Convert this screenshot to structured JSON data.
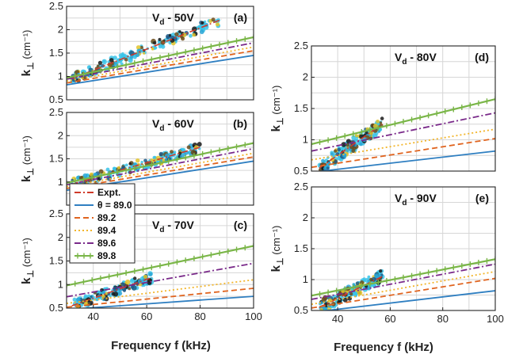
{
  "figure": {
    "ylabel_main": "k",
    "ylabel_sub": "⊥",
    "xlabel": "Frequency f (kHz)"
  },
  "legend": [
    {
      "label": "Expt.",
      "color": "#d03a2a",
      "dash": "dashdot"
    },
    {
      "label": "θ = 89.0",
      "color": "#2f7fc1",
      "dash": "solid"
    },
    {
      "label": "89.2",
      "color": "#e0641f",
      "dash": "dash"
    },
    {
      "label": "89.4",
      "color": "#f2b52a",
      "dash": "dot"
    },
    {
      "label": "89.6",
      "color": "#7a2a8a",
      "dash": "dashdot"
    },
    {
      "label": "89.8",
      "color": "#7ab648",
      "dash": "marker"
    }
  ],
  "chart_data": [
    {
      "type": "line",
      "panel": "(a)",
      "title_main": "V",
      "title_sub": "d",
      "title_rest": " - 50V",
      "ylabel_unit": " (cm⁻¹)",
      "x": [
        30,
        100
      ],
      "xlim": [
        30,
        100
      ],
      "ylim": [
        0.5,
        2.5
      ],
      "xticks": [],
      "yticks": [
        0.5,
        1,
        1.5,
        2,
        2.5
      ],
      "grid": true,
      "series": [
        {
          "name": "θ = 89.0",
          "color": "#2f7fc1",
          "dash": "solid",
          "values": [
            0.82,
            1.45
          ]
        },
        {
          "name": "89.2",
          "color": "#e0641f",
          "dash": "dash",
          "values": [
            0.86,
            1.55
          ]
        },
        {
          "name": "89.4",
          "color": "#f2b52a",
          "dash": "dot",
          "values": [
            0.9,
            1.63
          ]
        },
        {
          "name": "89.6",
          "color": "#7a2a8a",
          "dash": "dashdot",
          "values": [
            0.94,
            1.72
          ]
        },
        {
          "name": "89.8",
          "color": "#7ab648",
          "dash": "marker",
          "values": [
            0.97,
            1.84
          ]
        }
      ],
      "expt": {
        "x_range": [
          32,
          88
        ],
        "y_start": 0.95,
        "y_end": 2.22
      }
    },
    {
      "type": "line",
      "panel": "(b)",
      "title_main": "V",
      "title_sub": "d",
      "title_rest": " - 60V",
      "ylabel_unit": " (cm⁻¹)",
      "x": [
        30,
        100
      ],
      "xlim": [
        30,
        100
      ],
      "ylim": [
        0.5,
        2.5
      ],
      "xticks": [],
      "yticks": [
        1,
        1.5,
        2,
        2.5
      ],
      "grid": true,
      "series": [
        {
          "name": "θ = 89.0",
          "color": "#2f7fc1",
          "dash": "solid",
          "values": [
            0.82,
            1.45
          ]
        },
        {
          "name": "89.2",
          "color": "#e0641f",
          "dash": "dash",
          "values": [
            0.86,
            1.54
          ]
        },
        {
          "name": "89.4",
          "color": "#f2b52a",
          "dash": "dot",
          "values": [
            0.9,
            1.62
          ]
        },
        {
          "name": "89.6",
          "color": "#7a2a8a",
          "dash": "dashdot",
          "values": [
            0.94,
            1.72
          ]
        },
        {
          "name": "89.8",
          "color": "#7ab648",
          "dash": "marker",
          "values": [
            0.98,
            1.84
          ]
        }
      ],
      "expt": {
        "x_range": [
          32,
          80
        ],
        "y_start": 0.95,
        "y_end": 1.75
      }
    },
    {
      "type": "line",
      "panel": "(c)",
      "title_main": "V",
      "title_sub": "d",
      "title_rest": " - 70V",
      "ylabel_unit": " (cm⁻¹)",
      "x": [
        30,
        100
      ],
      "xlim": [
        30,
        100
      ],
      "ylim": [
        0.5,
        2.5
      ],
      "xticks": [
        40,
        60,
        80,
        100
      ],
      "yticks": [
        0.5,
        1,
        1.5,
        2,
        2.5
      ],
      "grid": true,
      "series": [
        {
          "name": "θ = 89.0",
          "color": "#2f7fc1",
          "dash": "solid",
          "values": [
            0.47,
            0.75
          ]
        },
        {
          "name": "89.2",
          "color": "#e0641f",
          "dash": "dash",
          "values": [
            0.52,
            0.92
          ]
        },
        {
          "name": "89.4",
          "color": "#f2b52a",
          "dash": "dot",
          "values": [
            0.6,
            1.1
          ]
        },
        {
          "name": "89.6",
          "color": "#7a2a8a",
          "dash": "dashdot",
          "values": [
            0.74,
            1.45
          ]
        },
        {
          "name": "89.8",
          "color": "#7ab648",
          "dash": "marker",
          "values": [
            0.98,
            1.82
          ]
        }
      ],
      "expt": {
        "x_range": [
          32,
          62
        ],
        "y_start": 0.55,
        "y_end": 1.15
      }
    },
    {
      "type": "line",
      "panel": "(d)",
      "title_main": "V",
      "title_sub": "d",
      "title_rest": " - 80V",
      "ylabel_unit": " (cm⁻¹)",
      "x": [
        30,
        100
      ],
      "xlim": [
        30,
        100
      ],
      "ylim": [
        0.5,
        2.5
      ],
      "xticks": [],
      "yticks": [
        0.5,
        1,
        1.5,
        2,
        2.5
      ],
      "grid": true,
      "series": [
        {
          "name": "θ = 89.0",
          "color": "#2f7fc1",
          "dash": "solid",
          "values": [
            0.48,
            0.82
          ]
        },
        {
          "name": "89.2",
          "color": "#e0641f",
          "dash": "dash",
          "values": [
            0.56,
            1.02
          ]
        },
        {
          "name": "89.4",
          "color": "#f2b52a",
          "dash": "dot",
          "values": [
            0.68,
            1.17
          ]
        },
        {
          "name": "89.6",
          "color": "#7a2a8a",
          "dash": "dashdot",
          "values": [
            0.82,
            1.43
          ]
        },
        {
          "name": "89.8",
          "color": "#7ab648",
          "dash": "marker",
          "values": [
            0.93,
            1.65
          ]
        }
      ],
      "expt": {
        "x_range": [
          33,
          57
        ],
        "y_start": 0.55,
        "y_end": 1.25
      }
    },
    {
      "type": "line",
      "panel": "(e)",
      "title_main": "V",
      "title_sub": "d",
      "title_rest": " - 90V",
      "ylabel_unit": " (cm⁻¹)",
      "x": [
        30,
        100
      ],
      "xlim": [
        30,
        100
      ],
      "ylim": [
        0.5,
        2.5
      ],
      "xticks": [
        40,
        60,
        80,
        100
      ],
      "yticks": [
        0.5,
        1,
        1.5,
        2,
        2.5
      ],
      "grid": true,
      "series": [
        {
          "name": "θ = 89.0",
          "color": "#2f7fc1",
          "dash": "solid",
          "values": [
            0.47,
            0.82
          ]
        },
        {
          "name": "89.2",
          "color": "#e0641f",
          "dash": "dash",
          "values": [
            0.54,
            1.02
          ]
        },
        {
          "name": "89.4",
          "color": "#f2b52a",
          "dash": "dot",
          "values": [
            0.6,
            1.13
          ]
        },
        {
          "name": "89.6",
          "color": "#7a2a8a",
          "dash": "dashdot",
          "values": [
            0.68,
            1.25
          ]
        },
        {
          "name": "89.8",
          "color": "#7ab648",
          "dash": "marker",
          "values": [
            0.74,
            1.33
          ]
        }
      ],
      "expt": {
        "x_range": [
          33,
          57
        ],
        "y_start": 0.55,
        "y_end": 1.05
      }
    }
  ]
}
